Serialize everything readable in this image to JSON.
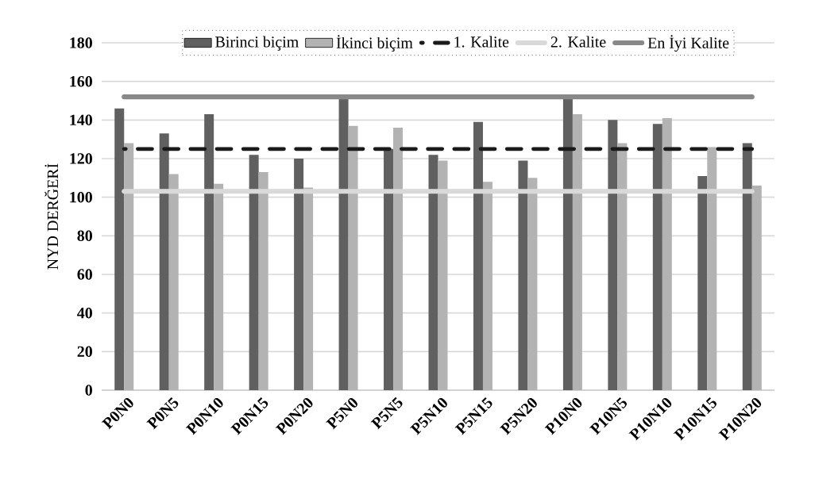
{
  "chart_data": {
    "type": "bar",
    "ylabel": "NYD DERĞERİ",
    "categories": [
      "P0N0",
      "P0N5",
      "P0N10",
      "P0N15",
      "P0N20",
      "P5N0",
      "P5N5",
      "P5N10",
      "P5N15",
      "P5N20",
      "P10N0",
      "P10N5",
      "P10N10",
      "P10N15",
      "P10N20"
    ],
    "series": [
      {
        "name": "Birinci biçim",
        "color": "#606060",
        "values": [
          146,
          133,
          143,
          122,
          120,
          151,
          125,
          122,
          139,
          119,
          151,
          140,
          138,
          111,
          128
        ]
      },
      {
        "name": "İkinci biçim",
        "color": "#b3b3b3",
        "values": [
          128,
          112,
          107,
          113,
          105,
          137,
          136,
          119,
          108,
          110,
          143,
          128,
          141,
          126,
          106
        ]
      },
      {
        "name": "1. Kalite",
        "type": "line",
        "line_style": "dashed",
        "color": "#1a1a1a",
        "values": [
          125,
          125,
          125,
          125,
          125,
          125,
          125,
          125,
          125,
          125,
          125,
          125,
          125,
          125,
          125
        ]
      },
      {
        "name": "2. Kalite",
        "type": "line",
        "line_style": "solid",
        "color": "#d9d9d9",
        "values": [
          103,
          103,
          103,
          103,
          103,
          103,
          103,
          103,
          103,
          103,
          103,
          103,
          103,
          103,
          103
        ]
      },
      {
        "name": "En İyi Kalite",
        "type": "line",
        "line_style": "solid",
        "color": "#888888",
        "values": [
          152,
          152,
          152,
          152,
          152,
          152,
          152,
          152,
          152,
          152,
          152,
          152,
          152,
          152,
          152
        ]
      }
    ],
    "ylim": [
      0,
      180
    ],
    "yticks": [
      0,
      20,
      40,
      60,
      80,
      100,
      120,
      140,
      160,
      180
    ],
    "grid": "y",
    "legend": "top"
  }
}
